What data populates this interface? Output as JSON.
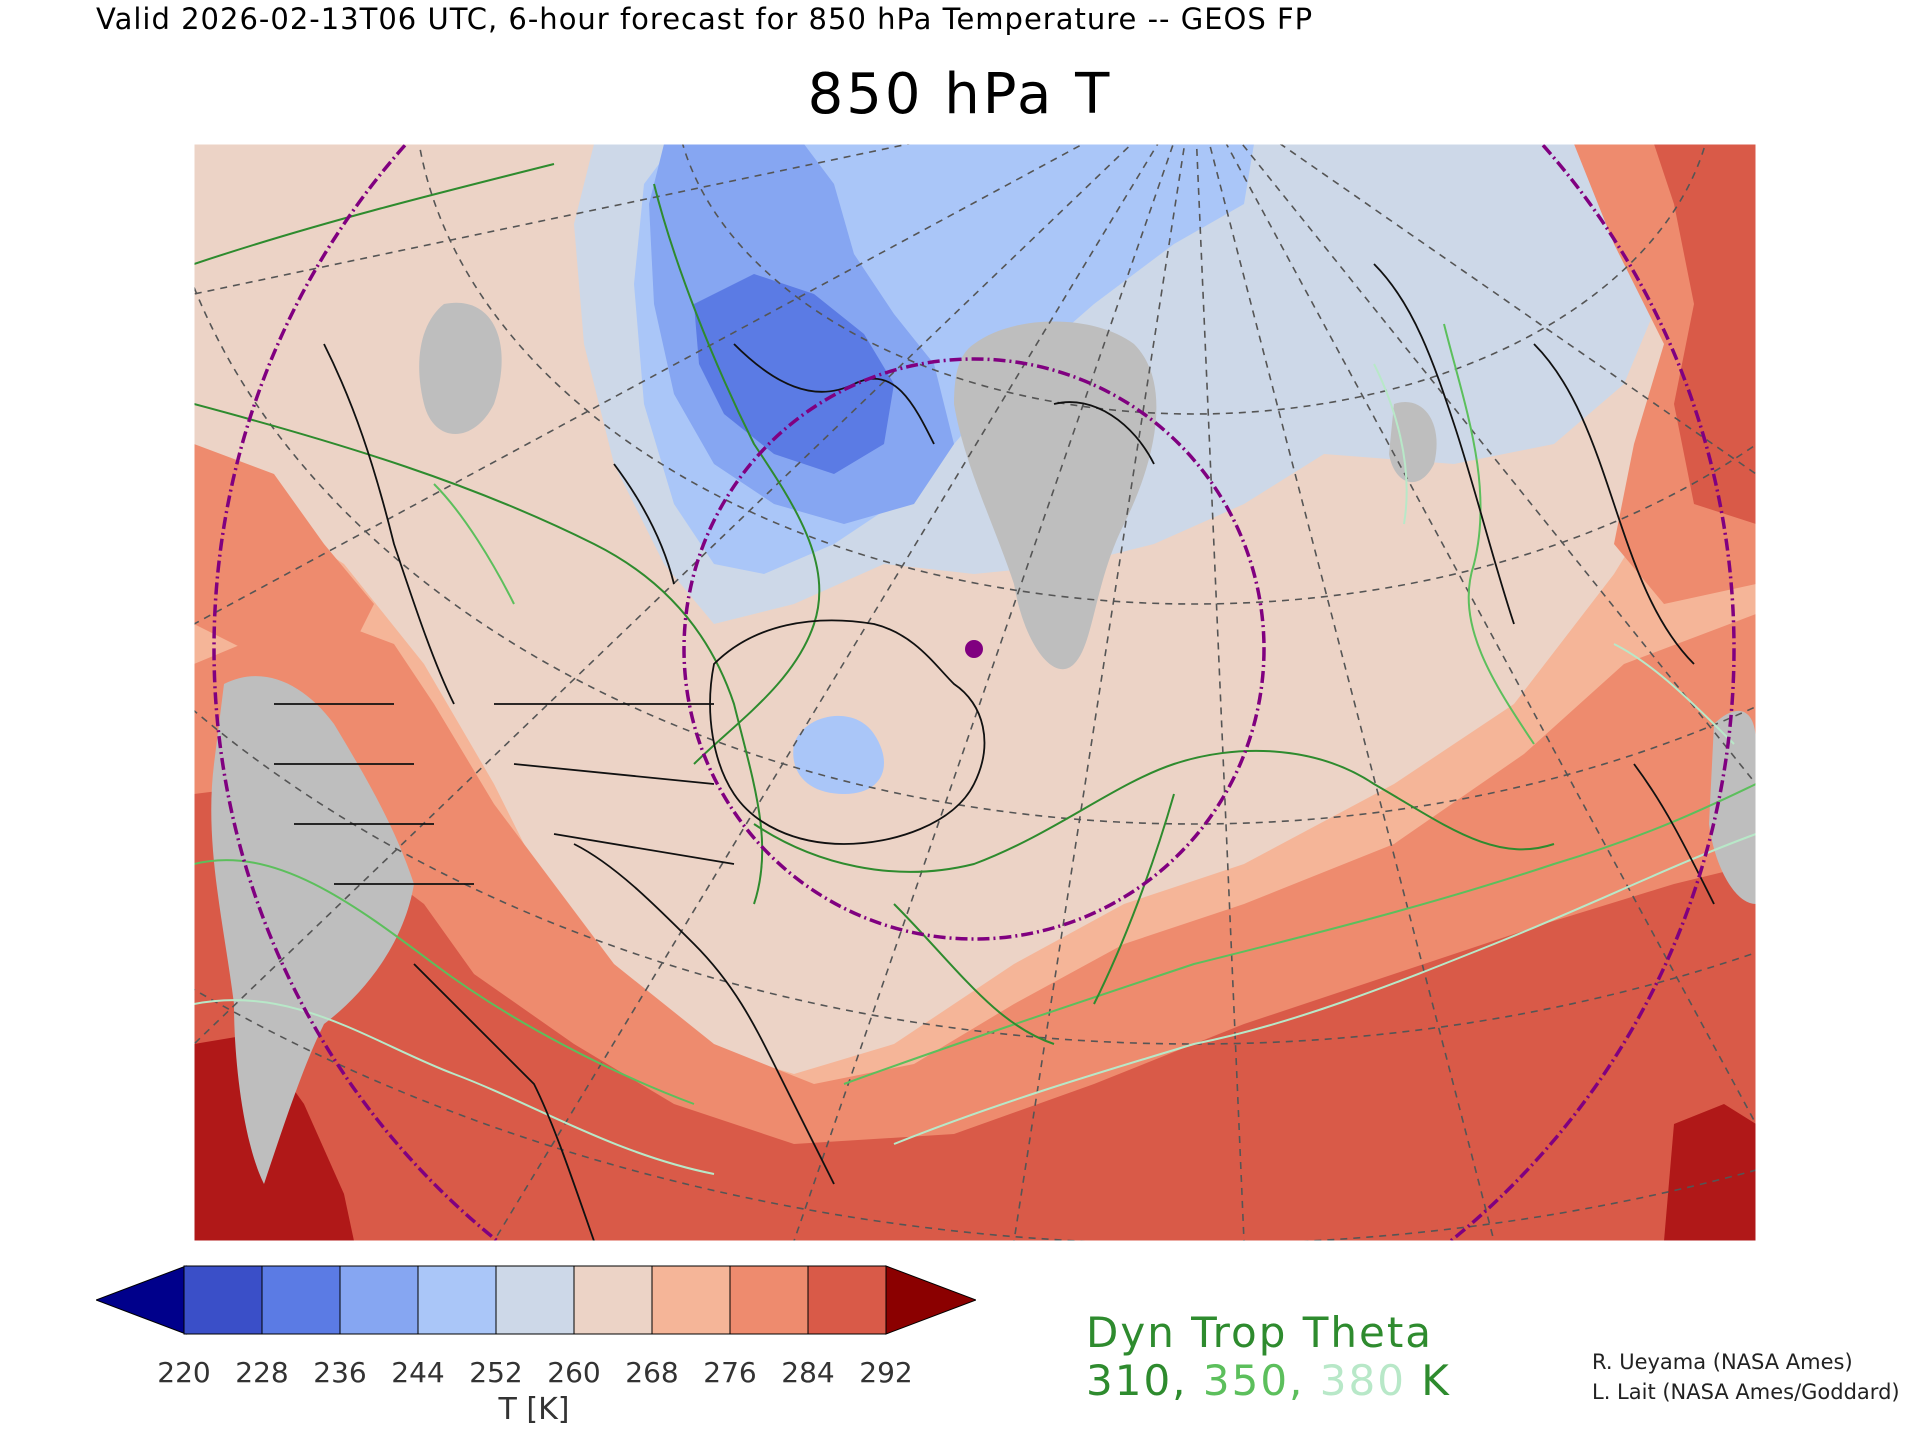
{
  "header": {
    "line": "Valid 2026-02-13T06 UTC, 6-hour forecast for 850 hPa Temperature -- GEOS FP",
    "title": "850 hPa T"
  },
  "colorbar": {
    "ticks": [
      "220",
      "228",
      "236",
      "244",
      "252",
      "260",
      "268",
      "276",
      "284",
      "292"
    ],
    "label": "T [K]",
    "under_color": "#00008b",
    "over_color": "#8b0000",
    "colors": [
      "#3a4fc8",
      "#5b7be4",
      "#86a6f2",
      "#aac6f8",
      "#cdd8e8",
      "#ecd3c6",
      "#f5b598",
      "#ee8b6e",
      "#d95a48"
    ]
  },
  "legend": {
    "title": "Dyn Trop Theta",
    "values": [
      {
        "text": "310",
        "color": "#2e8b2e"
      },
      {
        "text": "350",
        "color": "#5cbf5c"
      },
      {
        "text": "380",
        "color": "#b8e8c8"
      }
    ],
    "unit": "K"
  },
  "credits": {
    "line1": "R. Ueyama (NASA Ames)",
    "line2": "L. Lait (NASA Ames/Goddard)"
  },
  "map": {
    "missing_color": "#bebebe",
    "coastline_color": "#111111",
    "graticule_color": "#555555",
    "range_ring_color": "#800080",
    "marker_color": "#800080"
  }
}
